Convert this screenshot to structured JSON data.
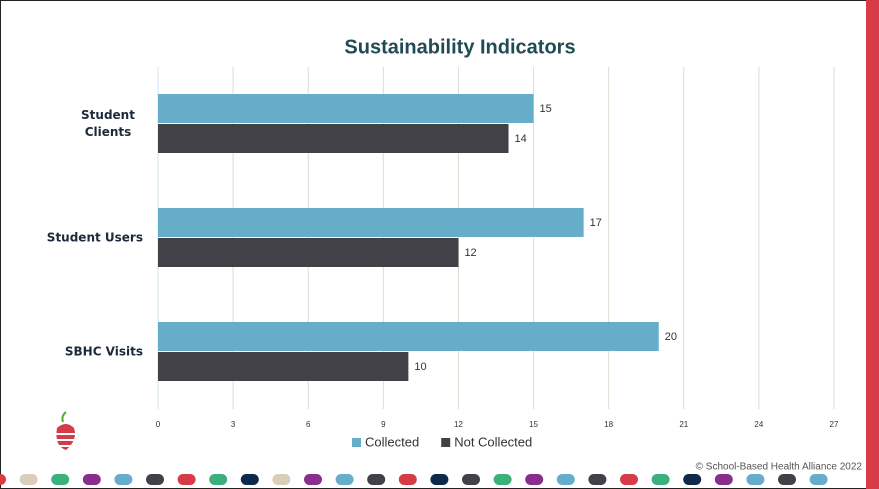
{
  "chart_data": {
    "type": "bar",
    "orientation": "horizontal",
    "title": "Sustainability Indicators",
    "categories": [
      "Student Clients",
      "Student Users",
      "SBHC Visits"
    ],
    "series": [
      {
        "name": "Collected",
        "color": "#65adc8",
        "values": [
          15,
          17,
          20
        ]
      },
      {
        "name": "Not Collected",
        "color": "#414147",
        "values": [
          14,
          12,
          10
        ]
      }
    ],
    "xlim": [
      0,
      27
    ],
    "xticks": [
      0,
      3,
      6,
      9,
      12,
      15,
      18,
      21,
      24,
      27
    ],
    "grid": true,
    "legend": "bottom"
  },
  "footer": {
    "copyright": "© School-Based Health Alliance 2022"
  }
}
